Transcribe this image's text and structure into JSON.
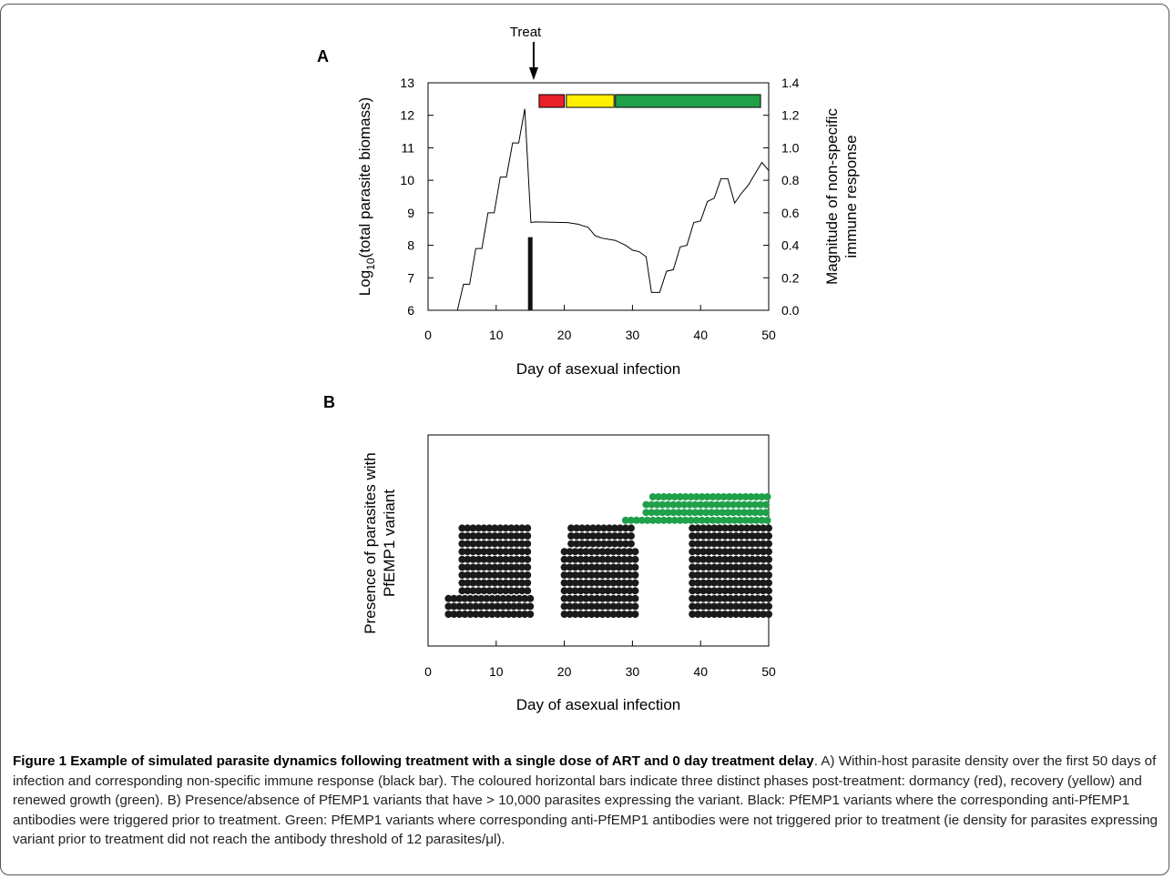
{
  "panels": {
    "a_label": "A",
    "b_label": "B"
  },
  "treat_label": "Treat",
  "chart_data": [
    {
      "panel": "A",
      "type": "line",
      "title": "",
      "xlabel": "Day of asexual infection",
      "ylabel_main": "Log",
      "ylabel_sub": "10",
      "ylabel_rest": "(total parasite biomass)",
      "y2label_line1": "Magnitude of non-specific",
      "y2label_line2": "immune response",
      "xlim": [
        0,
        50
      ],
      "ylim": [
        6,
        13
      ],
      "y2lim": [
        0,
        1.4
      ],
      "xticks": [
        0,
        10,
        20,
        30,
        40,
        50
      ],
      "yticks": [
        6,
        7,
        8,
        9,
        10,
        11,
        12,
        13
      ],
      "y2ticks": [
        "0.0",
        "0.2",
        "0.4",
        "0.6",
        "0.8",
        "1.0",
        "1.2",
        "1.4"
      ],
      "series": [
        {
          "x": [
            4.3,
            5.2,
            6.1,
            7.0,
            7.9,
            8.8,
            9.7,
            10.6,
            11.5,
            12.4,
            13.3,
            14.2,
            15.1,
            15.7,
            20.5,
            22.0,
            23.5,
            24.5,
            25.5,
            27.5,
            29.0,
            30.0,
            31.0,
            32.0,
            32.8,
            34.0,
            35.0,
            36.0,
            37.0,
            38.0,
            39.0,
            40.0,
            41.0,
            42.0,
            43.0,
            44.0,
            45.0,
            46.0,
            47.0,
            48.0,
            49.0,
            50.0
          ],
          "y": [
            6.0,
            6.8,
            6.8,
            7.9,
            7.9,
            9.0,
            9.0,
            10.1,
            10.1,
            11.15,
            11.15,
            12.2,
            8.7,
            8.72,
            8.7,
            8.65,
            8.55,
            8.3,
            8.22,
            8.15,
            8.0,
            7.85,
            7.8,
            7.65,
            6.55,
            6.55,
            7.2,
            7.25,
            7.95,
            8.0,
            8.7,
            8.75,
            9.35,
            9.45,
            10.05,
            10.05,
            9.3,
            9.6,
            9.85,
            10.2,
            10.55,
            10.3
          ]
        }
      ],
      "immune_bar": {
        "x": 15.0,
        "value": 0.45,
        "color": "#111111"
      },
      "phases": [
        {
          "name": "dormancy",
          "from": 16.3,
          "to": 20.0,
          "color": "#e8202a"
        },
        {
          "name": "recovery",
          "from": 20.3,
          "to": 27.3,
          "color": "#ffef00"
        },
        {
          "name": "renewed growth",
          "from": 27.5,
          "to": 48.8,
          "color": "#1fa049"
        }
      ],
      "treat_day": 15.5
    },
    {
      "panel": "B",
      "type": "scatter",
      "title": "",
      "xlabel": "Day of asexual infection",
      "ylabel_line1": "Presence of parasites with",
      "ylabel_line2": "PfEMP1 variant",
      "xlim": [
        0,
        50
      ],
      "xticks": [
        0,
        10,
        20,
        30,
        40,
        50
      ],
      "dot_spacing_days": 0.8,
      "series": [
        {
          "name": "Black",
          "color": "#1a1a1a",
          "rows": [
            {
              "row": 0,
              "from": 3.0,
              "to": 15.0
            },
            {
              "row": 1,
              "from": 3.0,
              "to": 15.0
            },
            {
              "row": 2,
              "from": 3.0,
              "to": 15.0
            },
            {
              "row": 3,
              "from": 5.0,
              "to": 15.0
            },
            {
              "row": 4,
              "from": 5.0,
              "to": 15.0
            },
            {
              "row": 5,
              "from": 5.0,
              "to": 15.0
            },
            {
              "row": 6,
              "from": 5.0,
              "to": 15.0
            },
            {
              "row": 7,
              "from": 5.0,
              "to": 15.0
            },
            {
              "row": 8,
              "from": 5.0,
              "to": 15.0
            },
            {
              "row": 9,
              "from": 5.0,
              "to": 15.0
            },
            {
              "row": 10,
              "from": 5.0,
              "to": 15.0
            },
            {
              "row": 11,
              "from": 5.0,
              "to": 15.0
            },
            {
              "row": 0,
              "from": 20.0,
              "to": 30.5
            },
            {
              "row": 1,
              "from": 20.0,
              "to": 30.5
            },
            {
              "row": 2,
              "from": 20.0,
              "to": 30.5
            },
            {
              "row": 3,
              "from": 20.0,
              "to": 30.5
            },
            {
              "row": 4,
              "from": 20.0,
              "to": 30.5
            },
            {
              "row": 5,
              "from": 20.0,
              "to": 30.5
            },
            {
              "row": 6,
              "from": 20.0,
              "to": 30.5
            },
            {
              "row": 7,
              "from": 20.0,
              "to": 30.5
            },
            {
              "row": 8,
              "from": 20.0,
              "to": 30.5
            },
            {
              "row": 9,
              "from": 21.0,
              "to": 30.5
            },
            {
              "row": 10,
              "from": 21.0,
              "to": 30.5
            },
            {
              "row": 11,
              "from": 21.0,
              "to": 30.5
            },
            {
              "row": 0,
              "from": 38.8,
              "to": 50.0
            },
            {
              "row": 1,
              "from": 38.8,
              "to": 50.0
            },
            {
              "row": 2,
              "from": 38.8,
              "to": 50.0
            },
            {
              "row": 3,
              "from": 38.8,
              "to": 50.0
            },
            {
              "row": 4,
              "from": 38.8,
              "to": 50.0
            },
            {
              "row": 5,
              "from": 38.8,
              "to": 50.0
            },
            {
              "row": 6,
              "from": 38.8,
              "to": 50.0
            },
            {
              "row": 7,
              "from": 38.8,
              "to": 50.0
            },
            {
              "row": 8,
              "from": 38.8,
              "to": 50.0
            },
            {
              "row": 9,
              "from": 38.8,
              "to": 50.0
            },
            {
              "row": 10,
              "from": 38.8,
              "to": 50.0
            },
            {
              "row": 11,
              "from": 38.8,
              "to": 50.0
            }
          ]
        },
        {
          "name": "Green",
          "color": "#1fa049",
          "rows": [
            {
              "row": 12,
              "from": 29.0,
              "to": 50.0
            },
            {
              "row": 13,
              "from": 32.0,
              "to": 50.0
            },
            {
              "row": 14,
              "from": 32.0,
              "to": 50.0
            },
            {
              "row": 15,
              "from": 33.0,
              "to": 50.0
            }
          ]
        }
      ]
    }
  ],
  "caption": {
    "title": "Figure 1 Example of simulated parasite dynamics following treatment with a single dose of ART and 0 day treatment delay",
    "body": ". A) Within-host parasite density over the first 50 days of infection and corresponding non-specific immune response (black bar). The coloured horizontal bars indicate three distinct phases post-treatment: dormancy (red), recovery (yellow) and renewed growth (green). B) Presence/absence of PfEMP1 variants that have > 10,000 parasites expressing the variant. Black: PfEMP1 variants where the corresponding anti-PfEMP1 antibodies were triggered prior to treatment. Green: PfEMP1 variants where corresponding anti-PfEMP1 antibodies were not triggered prior to treatment (ie density for parasites expressing variant prior to treatment did not reach the antibody threshold of 12 parasites/μl)."
  }
}
